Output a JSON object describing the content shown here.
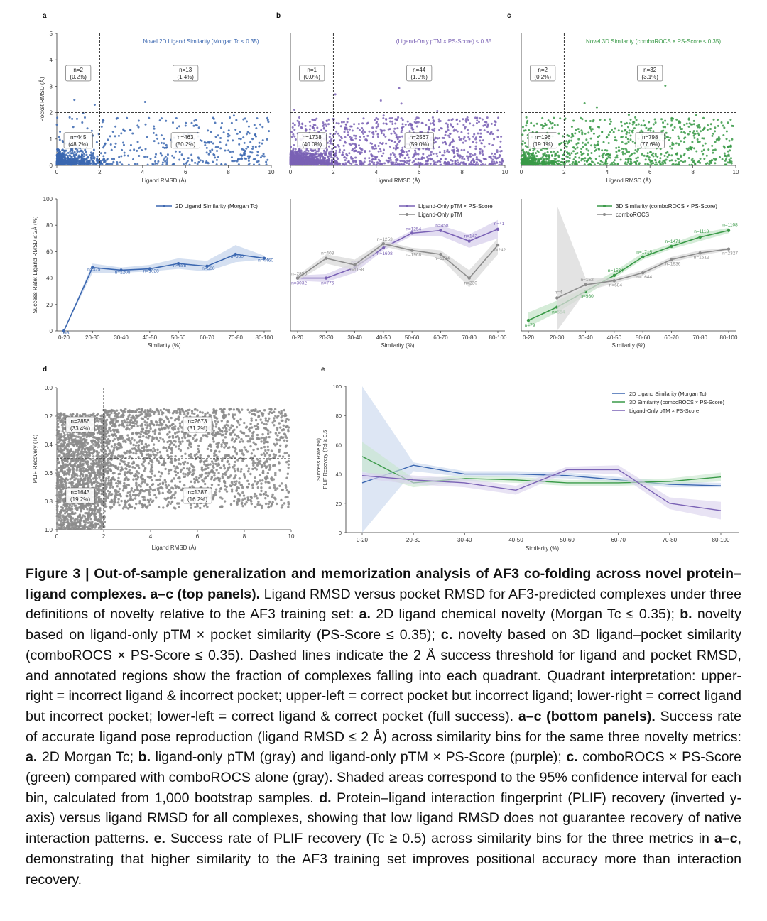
{
  "colors": {
    "blue": "#3b67b0",
    "purple": "#7a62b5",
    "green": "#3a9a48",
    "gray": "#8c8c8c",
    "ci_blue": "#c7d5ec",
    "ci_purple": "#d8d0ec",
    "ci_green": "#c7e6cb",
    "ci_gray": "#d9d9d9"
  },
  "panels": {
    "a_top": {
      "letter": "a",
      "title": "Novel 2D Ligand Similarity (Morgan Tc ≤ 0.35)",
      "ylabel": "Pocket RMSD (Å)",
      "xlabel": "Ligand RMSD (Å)",
      "quadrants": [
        {
          "n": "n=2",
          "pct": "(0.2%)"
        },
        {
          "n": "n=13",
          "pct": "(1.4%)"
        },
        {
          "n": "n=445",
          "pct": "(48.2%)"
        },
        {
          "n": "n=463",
          "pct": "(50.2%)"
        }
      ]
    },
    "b_top": {
      "letter": "b",
      "title": "(Ligand-Only pTM × PS-Score) ≤ 0.35",
      "xlabel": "Ligand RMSD (Å)",
      "quadrants": [
        {
          "n": "n=1",
          "pct": "(0.0%)"
        },
        {
          "n": "n=44",
          "pct": "(1.0%)"
        },
        {
          "n": "n=1738",
          "pct": "(40.0%)"
        },
        {
          "n": "n=2567",
          "pct": "(59.0%)"
        }
      ]
    },
    "c_top": {
      "letter": "c",
      "title": "Novel 3D Similarity (comboROCS × PS-Score ≤ 0.35)",
      "xlabel": "Ligand RMSD (Å)",
      "quadrants": [
        {
          "n": "n=2",
          "pct": "(0.2%)"
        },
        {
          "n": "n=32",
          "pct": "(3.1%)"
        },
        {
          "n": "n=196",
          "pct": "(19.1%)"
        },
        {
          "n": "n=798",
          "pct": "(77.6%)"
        }
      ]
    },
    "d": {
      "letter": "d",
      "ylabel": "PLIF Recovery (Tc)",
      "xlabel": "Ligand RMSD (Å)",
      "quadrants": [
        {
          "n": "n=2856",
          "pct": "(33.4%)"
        },
        {
          "n": "n=2673",
          "pct": "(31.2%)"
        },
        {
          "n": "n=1643",
          "pct": "(19.2%)"
        },
        {
          "n": "n=1387",
          "pct": "(16.2%)"
        }
      ]
    },
    "e": {
      "letter": "e",
      "ylabel": "Success Rate (%)\nPLIF Recovery (Tc) ≥ 0.5",
      "xlabel": "Similarity (%)"
    }
  },
  "chart_data": [
    {
      "id": "a_top",
      "type": "scatter",
      "xlim": [
        0,
        10
      ],
      "ylim": [
        0,
        5
      ],
      "xticks": [
        0,
        2,
        4,
        6,
        8,
        10
      ],
      "yticks": [
        0,
        1,
        2,
        3,
        4,
        5
      ],
      "threshold": {
        "x": 2,
        "y": 2
      },
      "color": "blue",
      "n_points": 923
    },
    {
      "id": "b_top",
      "type": "scatter",
      "xlim": [
        0,
        10
      ],
      "ylim": [
        0,
        5
      ],
      "xticks": [
        0,
        2,
        4,
        6,
        8,
        10
      ],
      "threshold": {
        "x": 2,
        "y": 2
      },
      "color": "purple",
      "n_points": 4350
    },
    {
      "id": "c_top",
      "type": "scatter",
      "xlim": [
        0,
        10
      ],
      "ylim": [
        0,
        5
      ],
      "xticks": [
        0,
        2,
        4,
        6,
        8,
        10
      ],
      "threshold": {
        "x": 2,
        "y": 2
      },
      "color": "green",
      "n_points": 1028
    },
    {
      "id": "a_bot",
      "type": "line",
      "ylabel": "Success Rate: Ligand RMSD ≤ 2Å (%)",
      "xlabel": "Similarity (%)",
      "ylim": [
        0,
        100
      ],
      "yticks": [
        0,
        20,
        40,
        60,
        80,
        100
      ],
      "categories": [
        "0-20",
        "20-30",
        "30-40",
        "40-50",
        "50-60",
        "60-70",
        "70-80",
        "80-100"
      ],
      "series": [
        {
          "name": "2D Ligand Similarity (Morgan Tc)",
          "color": "blue",
          "values": [
            0,
            48,
            46,
            47,
            51,
            49,
            58,
            55
          ],
          "labels": [
            "n=3",
            "n=325",
            "n=1208",
            "n=1028",
            "n=685",
            "n=500",
            "n=350",
            "n=4460"
          ],
          "ci_low": [
            0,
            44,
            44,
            45,
            47,
            45,
            52,
            54
          ],
          "ci_high": [
            0,
            51,
            48,
            50,
            55,
            53,
            65,
            57
          ]
        }
      ]
    },
    {
      "id": "b_bot",
      "type": "line",
      "xlabel": "Similarity (%)",
      "ylim": [
        0,
        100
      ],
      "categories": [
        "0-20",
        "20-30",
        "30-40",
        "40-50",
        "50-60",
        "60-70",
        "70-80",
        "80-100"
      ],
      "series": [
        {
          "name": "Ligand-Only pTM × PS-Score",
          "color": "purple",
          "values": [
            40,
            40,
            48,
            63,
            74,
            76,
            68,
            77
          ],
          "labels": [
            "n=3032",
            "n=776",
            "n=48",
            "n=1698",
            "n=1254",
            "n=458",
            "n=142",
            "n=41"
          ],
          "ci_low": [
            38,
            37,
            44,
            61,
            72,
            72,
            63,
            70
          ],
          "ci_high": [
            42,
            43,
            52,
            65,
            76,
            80,
            73,
            84
          ]
        },
        {
          "name": "Ligand-Only pTM",
          "color": "gray",
          "values": [
            40,
            55,
            50,
            66,
            61,
            58,
            40,
            65
          ],
          "labels": [
            "n=2856",
            "n=403",
            "n=1158",
            "n=1253",
            "n=1968",
            "n=1124",
            "n=230",
            "n=242"
          ],
          "ci_low": [
            38,
            51,
            46,
            64,
            59,
            55,
            33,
            58
          ],
          "ci_high": [
            42,
            58,
            54,
            68,
            63,
            61,
            46,
            70
          ]
        }
      ]
    },
    {
      "id": "c_bot",
      "type": "line",
      "xlabel": "Similarity (%)",
      "ylim": [
        0,
        100
      ],
      "categories": [
        "0-20",
        "20-30",
        "30-40",
        "40-50",
        "50-60",
        "60-70",
        "70-80",
        "80-100"
      ],
      "series": [
        {
          "name": "3D Similarity (comboROCS × PS-Score)",
          "color": "green",
          "values": [
            8,
            18,
            30,
            42,
            56,
            64,
            71,
            76
          ],
          "labels": [
            "n=79",
            "n=554",
            "n=980",
            "n=1534",
            "n=1715",
            "n=1471",
            "n=1118",
            "n=1108"
          ],
          "ci_low": [
            3,
            14,
            27,
            40,
            54,
            62,
            68,
            74
          ],
          "ci_high": [
            14,
            23,
            33,
            45,
            59,
            66,
            74,
            78
          ]
        },
        {
          "name": "comboROCS",
          "color": "gray",
          "values": [
            null,
            25,
            35,
            38,
            44,
            54,
            59,
            62
          ],
          "labels": [
            "",
            "n=4",
            "n=152",
            "n=684",
            "n=1644",
            "n=1936",
            "n=1612",
            "n=2327"
          ],
          "ci_low": [
            null,
            0,
            30,
            36,
            42,
            52,
            57,
            61
          ],
          "ci_high": [
            null,
            95,
            40,
            40,
            46,
            56,
            61,
            63
          ]
        }
      ]
    },
    {
      "id": "d",
      "type": "scatter",
      "xlim": [
        0,
        10
      ],
      "ylim_inverted": [
        0,
        1
      ],
      "xticks": [
        0,
        2,
        4,
        6,
        8,
        10
      ],
      "yticks": [
        0.0,
        0.2,
        0.4,
        0.6,
        0.8,
        1.0
      ],
      "threshold": {
        "x": 2,
        "y": 0.5
      },
      "color": "gray",
      "n_points": 8559
    },
    {
      "id": "e",
      "type": "line",
      "ylim": [
        0,
        100
      ],
      "yticks": [
        0,
        20,
        40,
        60,
        80,
        100
      ],
      "legend": "top-right",
      "categories": [
        "0-20",
        "20-30",
        "30-40",
        "40-50",
        "50-60",
        "60-70",
        "70-80",
        "80-100"
      ],
      "series": [
        {
          "name": "2D Ligand Similarity (Morgan Tc)",
          "color": "blue",
          "values": [
            34,
            46,
            40,
            40,
            39,
            36,
            33,
            32
          ],
          "ci_low": [
            0,
            42,
            38,
            38,
            37,
            34,
            31,
            31
          ],
          "ci_high": [
            100,
            48,
            42,
            42,
            41,
            38,
            35,
            34
          ]
        },
        {
          "name": "3D Similarity (comboROCS × PS-Score)",
          "color": "green",
          "values": [
            52,
            34,
            37,
            36,
            34,
            34,
            35,
            38
          ],
          "ci_low": [
            42,
            31,
            35,
            34,
            32,
            32,
            33,
            35
          ],
          "ci_high": [
            62,
            37,
            39,
            38,
            36,
            36,
            37,
            41
          ]
        },
        {
          "name": "Ligand-Only pTM × PS-Score",
          "color": "purple",
          "values": [
            39,
            36,
            34,
            29,
            43,
            43,
            20,
            15
          ],
          "ci_low": [
            37,
            33,
            31,
            26,
            41,
            40,
            16,
            9
          ],
          "ci_high": [
            41,
            39,
            37,
            32,
            45,
            46,
            24,
            21
          ]
        }
      ]
    }
  ],
  "caption": {
    "head": "Figure 3 | Out-of-sample generalization and memorization analysis of AF3 co-folding across novel protein–ligand complexes",
    "segments": [
      {
        "t": ". ",
        "b": true
      },
      {
        "t": "a–c (top panels).",
        "b": true
      },
      {
        "t": " Ligand RMSD versus pocket RMSD for AF3-predicted complexes under three definitions of novelty relative to the AF3 training set: ",
        "b": false
      },
      {
        "t": "a.",
        "b": true
      },
      {
        "t": " 2D ligand chemical novelty (Morgan Tc ≤ 0.35); ",
        "b": false
      },
      {
        "t": "b.",
        "b": true
      },
      {
        "t": " novelty based on ligand-only pTM × pocket similarity (PS-Score ≤ 0.35); ",
        "b": false
      },
      {
        "t": "c.",
        "b": true
      },
      {
        "t": " novelty based on 3D ligand–pocket similarity (comboROCS × PS-Score ≤ 0.35). Dashed lines indicate the 2 Å success threshold for ligand and pocket RMSD, and annotated regions show the fraction of complexes falling into each quadrant. Quadrant interpretation: upper-right = incorrect ligand & incorrect pocket; upper-left = correct pocket but incorrect ligand; lower-right = correct ligand but incorrect pocket; lower-left = correct ligand & correct pocket (full success). ",
        "b": false
      },
      {
        "t": "a–c (bottom panels).",
        "b": true
      },
      {
        "t": " Success rate of accurate ligand pose reproduction (ligand RMSD ≤ 2 Å) across similarity bins for the same three novelty metrics: ",
        "b": false
      },
      {
        "t": "a.",
        "b": true
      },
      {
        "t": " 2D Morgan Tc; ",
        "b": false
      },
      {
        "t": "b.",
        "b": true
      },
      {
        "t": " ligand-only pTM (gray) and ligand-only pTM × PS-Score (purple); ",
        "b": false
      },
      {
        "t": "c.",
        "b": true
      },
      {
        "t": " comboROCS × PS-Score (green) compared with comboROCS alone (gray). Shaded areas correspond to the 95% confidence interval for each bin, calculated from 1,000 bootstrap samples. ",
        "b": false
      },
      {
        "t": "d.",
        "b": true
      },
      {
        "t": " Protein–ligand interaction fingerprint (PLIF) recovery (inverted y-axis) versus ligand RMSD for all complexes, showing that low ligand RMSD does not guarantee recovery of native interaction patterns. ",
        "b": false
      },
      {
        "t": "e.",
        "b": true
      },
      {
        "t": " Success rate of PLIF recovery (Tc ≥ 0.5) across similarity bins for the three metrics in ",
        "b": false
      },
      {
        "t": "a–c",
        "b": true
      },
      {
        "t": ", demonstrating that higher similarity to the AF3 training set improves positional accuracy more than interaction recovery.",
        "b": false
      }
    ]
  }
}
